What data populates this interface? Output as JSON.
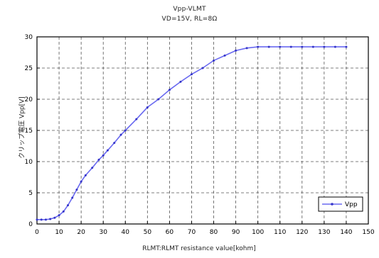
{
  "chart_data": {
    "type": "line",
    "title": "Vpp-VLMT",
    "subtitle": "VD=15V, RL=8Ω",
    "xlabel": "RLMT:RLMT resistance value[kohm]",
    "ylabel": "クリップ電圧 Vpp[V]",
    "xlim": [
      0,
      150
    ],
    "ylim": [
      0,
      30
    ],
    "xticks": [
      0,
      10,
      20,
      30,
      40,
      50,
      60,
      70,
      80,
      90,
      100,
      110,
      120,
      130,
      140,
      150
    ],
    "yticks": [
      0,
      5,
      10,
      15,
      20,
      25,
      30
    ],
    "grid": true,
    "legend_position": "bottom-right",
    "colors": {
      "line": "#6a6af0",
      "marker": "#3535c8",
      "frame": "#000000",
      "grid": "#555555"
    },
    "series": [
      {
        "name": "Vpp",
        "x": [
          0,
          2,
          4,
          6,
          8,
          10,
          12,
          14,
          16,
          18,
          20,
          22,
          25,
          28,
          30,
          32,
          35,
          38,
          40,
          45,
          50,
          55,
          60,
          65,
          70,
          75,
          80,
          85,
          90,
          95,
          100,
          105,
          110,
          115,
          120,
          125,
          130,
          135,
          140
        ],
        "values": [
          0.7,
          0.7,
          0.7,
          0.8,
          1.0,
          1.4,
          2.0,
          3.0,
          4.2,
          5.5,
          6.8,
          7.8,
          9.0,
          10.3,
          11.0,
          11.8,
          13.0,
          14.3,
          15.0,
          16.8,
          18.7,
          20.0,
          21.5,
          22.8,
          24.0,
          25.0,
          26.2,
          27.0,
          27.8,
          28.2,
          28.4,
          28.4,
          28.4,
          28.4,
          28.4,
          28.4,
          28.4,
          28.4,
          28.4
        ]
      }
    ]
  }
}
